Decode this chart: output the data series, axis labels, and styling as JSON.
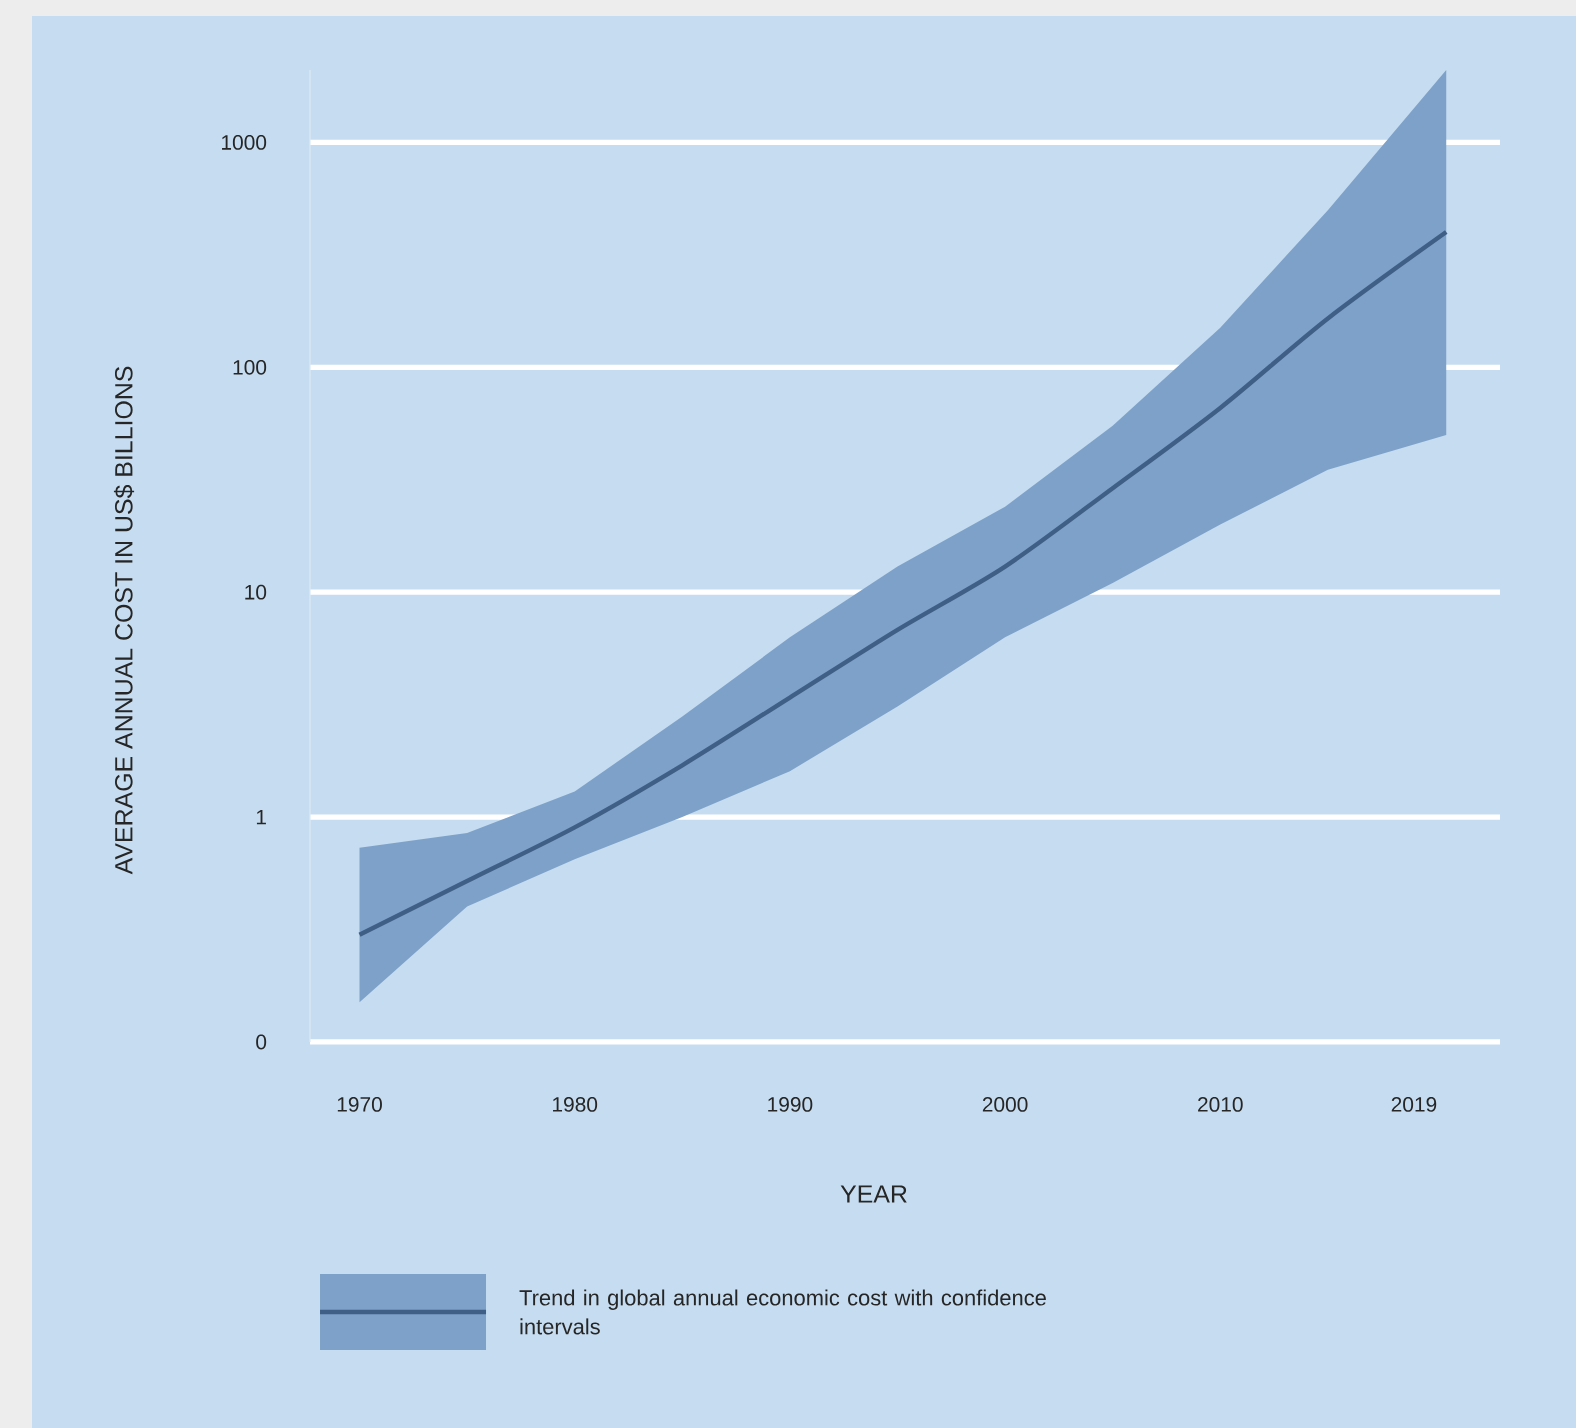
{
  "chart_data": {
    "type": "line",
    "xlabel": "YEAR",
    "ylabel": "AVERAGE ANNUAL COST IN US$ BILLIONS",
    "log": "y",
    "grid": "y",
    "legend": "bottom",
    "ylim": [
      0.1,
      2100
    ],
    "xlim": [
      1967.7,
      2023
    ],
    "xticks": [
      1970,
      1980,
      1990,
      2000,
      2010,
      2019
    ],
    "yticks": [
      {
        "value": 0.1,
        "label": "0"
      },
      1,
      10,
      100,
      1000
    ],
    "series": [
      {
        "name": "Trend in global annual economic cost with confidence intervals",
        "color": "#3f5f86",
        "x": [
          1970,
          1975,
          1980,
          1985,
          1990,
          1995,
          2000,
          2005,
          2010,
          2015,
          2020.5
        ],
        "values": [
          0.3,
          0.52,
          0.9,
          1.7,
          3.4,
          6.8,
          13,
          29,
          66,
          165,
          400
        ],
        "lower": [
          0.15,
          0.4,
          0.65,
          1.0,
          1.6,
          3.1,
          6.3,
          11,
          20,
          35,
          50
        ],
        "upper": [
          0.73,
          0.85,
          1.3,
          2.8,
          6.3,
          13,
          24,
          55,
          150,
          500,
          2100
        ]
      }
    ]
  }
}
